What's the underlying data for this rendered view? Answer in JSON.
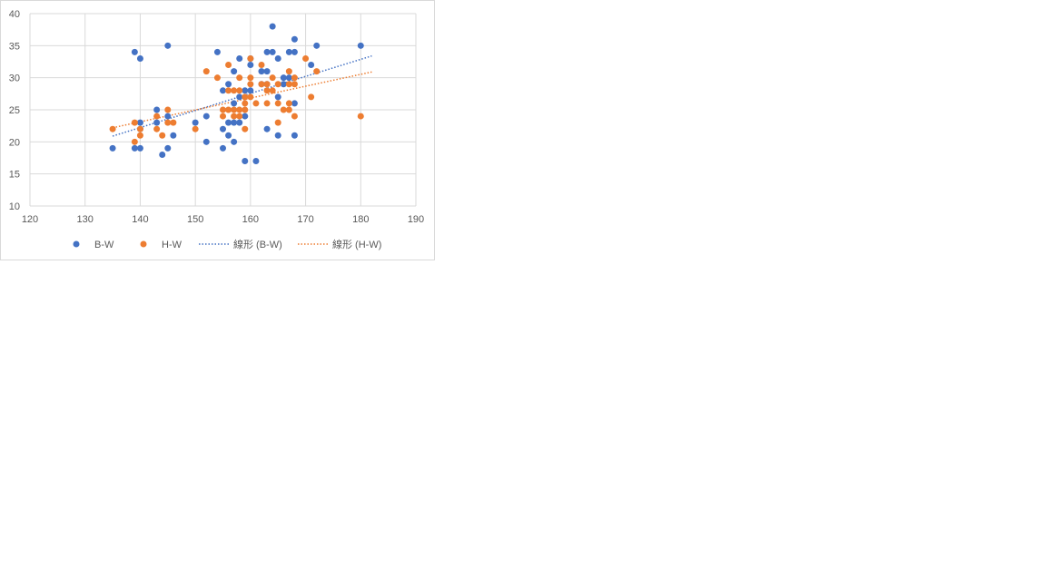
{
  "chart_data": {
    "type": "scatter",
    "title": "",
    "xlabel": "",
    "ylabel": "",
    "xlim": [
      120,
      190
    ],
    "ylim": [
      10,
      40
    ],
    "x_ticks": [
      120,
      130,
      140,
      150,
      160,
      170,
      180,
      190
    ],
    "y_ticks": [
      10,
      15,
      20,
      25,
      30,
      35,
      40
    ],
    "grid": true,
    "legend_position": "bottom",
    "series": [
      {
        "name": "B-W",
        "color": "#4472c4",
        "points": [
          [
            135,
            19
          ],
          [
            139,
            34
          ],
          [
            139,
            19
          ],
          [
            140,
            33
          ],
          [
            140,
            23
          ],
          [
            140,
            22
          ],
          [
            140,
            19
          ],
          [
            143,
            25
          ],
          [
            143,
            23
          ],
          [
            144,
            18
          ],
          [
            145,
            35
          ],
          [
            145,
            24
          ],
          [
            145,
            19
          ],
          [
            146,
            21
          ],
          [
            150,
            23
          ],
          [
            152,
            24
          ],
          [
            152,
            20
          ],
          [
            154,
            34
          ],
          [
            155,
            28
          ],
          [
            155,
            22
          ],
          [
            155,
            19
          ],
          [
            156,
            29
          ],
          [
            156,
            23
          ],
          [
            156,
            21
          ],
          [
            157,
            31
          ],
          [
            157,
            26
          ],
          [
            157,
            23
          ],
          [
            157,
            20
          ],
          [
            158,
            33
          ],
          [
            158,
            27
          ],
          [
            158,
            23
          ],
          [
            159,
            28
          ],
          [
            159,
            24
          ],
          [
            159,
            17
          ],
          [
            160,
            33
          ],
          [
            160,
            32
          ],
          [
            160,
            28
          ],
          [
            161,
            17
          ],
          [
            162,
            31
          ],
          [
            162,
            29
          ],
          [
            163,
            34
          ],
          [
            163,
            31
          ],
          [
            163,
            29
          ],
          [
            163,
            22
          ],
          [
            164,
            38
          ],
          [
            164,
            34
          ],
          [
            165,
            33
          ],
          [
            165,
            27
          ],
          [
            165,
            21
          ],
          [
            166,
            30
          ],
          [
            166,
            29
          ],
          [
            167,
            34
          ],
          [
            167,
            30
          ],
          [
            168,
            36
          ],
          [
            168,
            34
          ],
          [
            168,
            26
          ],
          [
            168,
            21
          ],
          [
            171,
            32
          ],
          [
            172,
            35
          ],
          [
            180,
            35
          ]
        ],
        "trendline": {
          "name": "線形 (B-W)",
          "type": "linear",
          "x_range": [
            135,
            182
          ],
          "y_range": [
            20.9,
            33.4
          ]
        }
      },
      {
        "name": "H-W",
        "color": "#ed7d31",
        "points": [
          [
            135,
            22
          ],
          [
            139,
            23
          ],
          [
            139,
            20
          ],
          [
            140,
            22
          ],
          [
            140,
            21
          ],
          [
            143,
            24
          ],
          [
            143,
            22
          ],
          [
            144,
            21
          ],
          [
            145,
            25
          ],
          [
            145,
            23
          ],
          [
            146,
            23
          ],
          [
            150,
            22
          ],
          [
            152,
            31
          ],
          [
            154,
            30
          ],
          [
            155,
            25
          ],
          [
            155,
            24
          ],
          [
            156,
            32
          ],
          [
            156,
            28
          ],
          [
            156,
            25
          ],
          [
            157,
            28
          ],
          [
            157,
            25
          ],
          [
            157,
            24
          ],
          [
            158,
            30
          ],
          [
            158,
            28
          ],
          [
            158,
            25
          ],
          [
            158,
            24
          ],
          [
            159,
            27
          ],
          [
            159,
            26
          ],
          [
            159,
            25
          ],
          [
            159,
            22
          ],
          [
            160,
            33
          ],
          [
            160,
            30
          ],
          [
            160,
            29
          ],
          [
            160,
            27
          ],
          [
            161,
            26
          ],
          [
            162,
            32
          ],
          [
            162,
            29
          ],
          [
            163,
            29
          ],
          [
            163,
            28
          ],
          [
            163,
            26
          ],
          [
            164,
            30
          ],
          [
            164,
            28
          ],
          [
            165,
            29
          ],
          [
            165,
            26
          ],
          [
            165,
            23
          ],
          [
            166,
            25
          ],
          [
            167,
            31
          ],
          [
            167,
            29
          ],
          [
            167,
            26
          ],
          [
            167,
            25
          ],
          [
            168,
            30
          ],
          [
            168,
            29
          ],
          [
            168,
            24
          ],
          [
            170,
            33
          ],
          [
            171,
            27
          ],
          [
            172,
            31
          ],
          [
            180,
            24
          ]
        ],
        "trendline": {
          "name": "線形 (H-W)",
          "type": "linear",
          "x_range": [
            135,
            182
          ],
          "y_range": [
            22.2,
            30.9
          ]
        }
      }
    ]
  }
}
